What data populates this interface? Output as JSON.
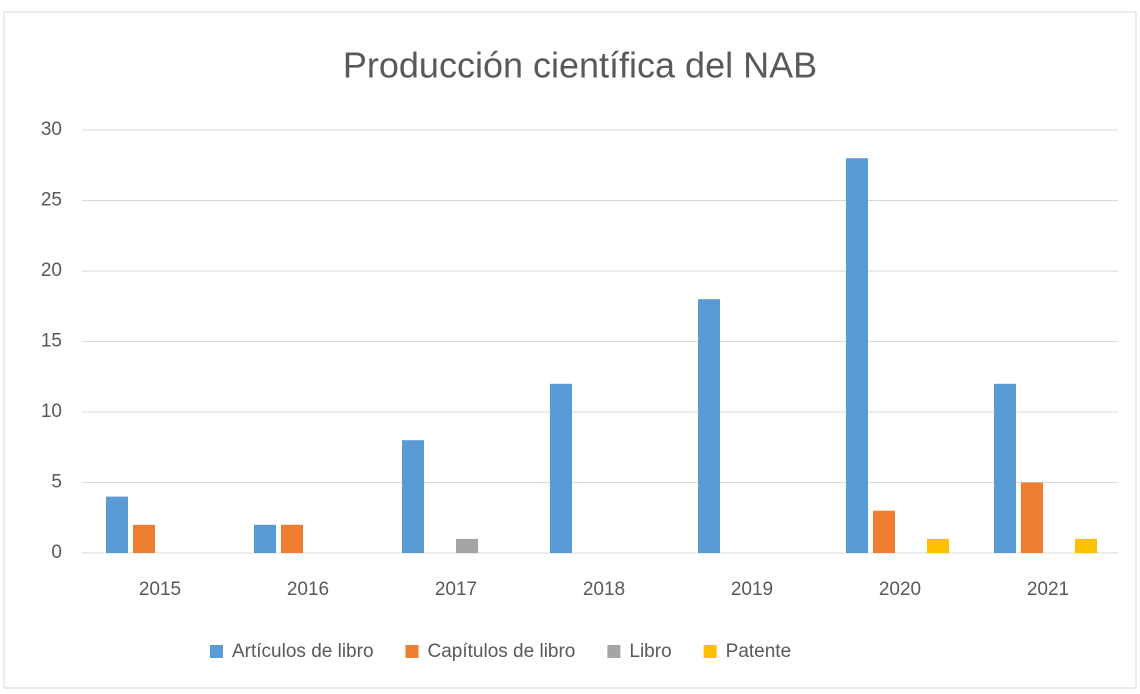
{
  "chart_data": {
    "type": "bar",
    "title": "Producción científica del NAB",
    "categories": [
      "2015",
      "2016",
      "2017",
      "2018",
      "2019",
      "2020",
      "2021"
    ],
    "series": [
      {
        "name": "Artículos de libro",
        "color": "#5b9bd5",
        "values": [
          4,
          2,
          8,
          12,
          18,
          28,
          12
        ]
      },
      {
        "name": "Capítulos de libro",
        "color": "#ed7d31",
        "values": [
          2,
          2,
          0,
          0,
          0,
          3,
          5
        ]
      },
      {
        "name": "Libro",
        "color": "#a5a5a5",
        "values": [
          0,
          0,
          1,
          0,
          0,
          0,
          0
        ]
      },
      {
        "name": "Patente",
        "color": "#ffc000",
        "values": [
          0,
          0,
          0,
          0,
          0,
          1,
          1
        ]
      }
    ],
    "ylim": [
      0,
      30
    ],
    "yticks": [
      0,
      5,
      10,
      15,
      20,
      25,
      30
    ],
    "grid": true,
    "legend": "bottom"
  }
}
